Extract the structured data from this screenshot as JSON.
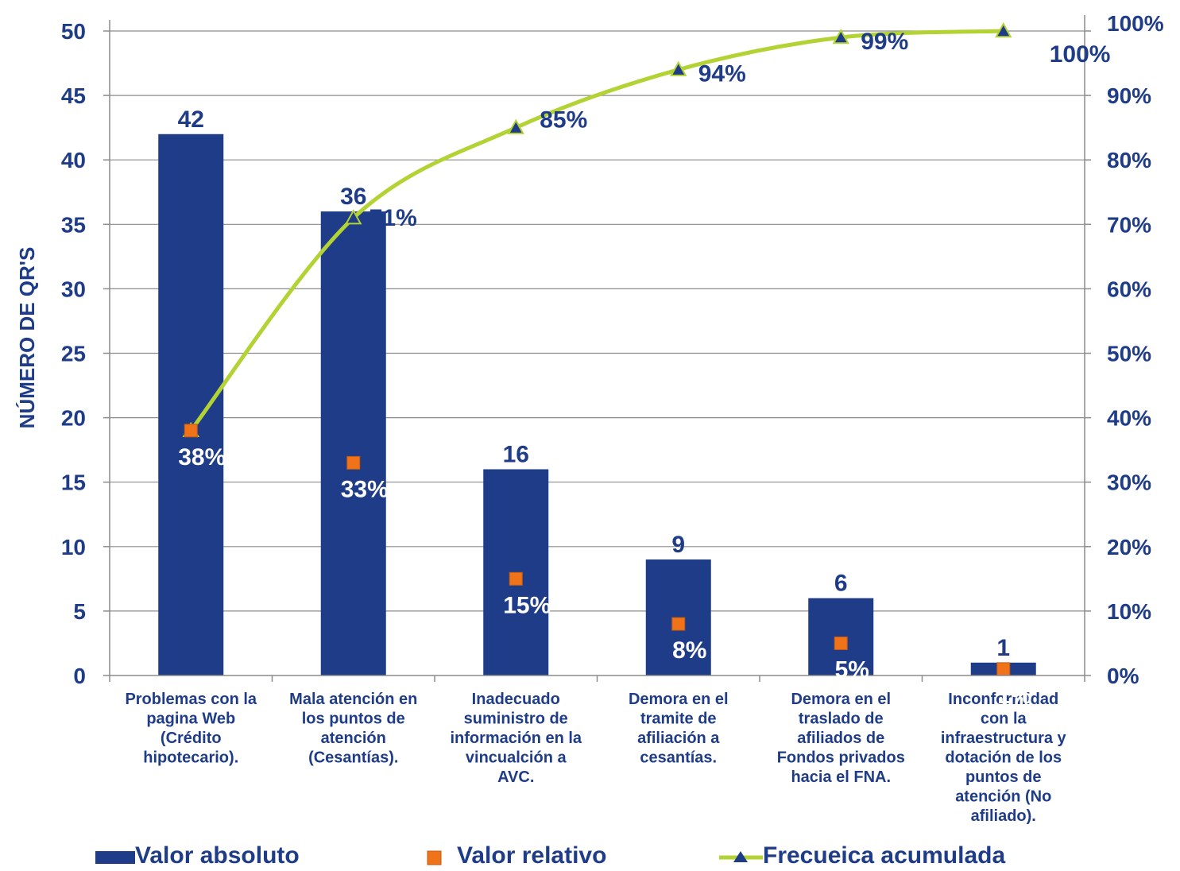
{
  "chart_data": {
    "type": "bar",
    "categories": [
      "Problemas con la pagina Web (Crédito hipotecario).",
      "Mala atención en los puntos de atención (Cesantías).",
      "Inadecuado suministro de información en la vincualción a AVC.",
      "Demora en el tramite de afiliación a cesantías.",
      "Demora en el traslado de afiliados de Fondos privados hacia el FNA.",
      "Inconformidad con la infraestructura y dotación de los puntos de atención (No afiliado)."
    ],
    "category_lines": [
      [
        "Problemas con la",
        "pagina Web",
        "(Crédito",
        "hipotecario)."
      ],
      [
        "Mala atención en",
        "los puntos de",
        "atención",
        "(Cesantías)."
      ],
      [
        "Inadecuado",
        "suministro de",
        "información en la",
        "vincualción a",
        "AVC."
      ],
      [
        "Demora en el",
        "tramite de",
        "afiliación a",
        "cesantías."
      ],
      [
        "Demora en el",
        "traslado de",
        "afiliados de",
        "Fondos privados",
        "hacia el FNA."
      ],
      [
        "Inconformidad",
        "con la",
        "infraestructura y",
        "dotación de los",
        "puntos de",
        "atención (No",
        "afiliado)."
      ]
    ],
    "series": [
      {
        "name": "Valor absoluto",
        "type": "bar",
        "axis": "left",
        "values": [
          42,
          36,
          16,
          9,
          6,
          1
        ],
        "labels": [
          "42",
          "36",
          "16",
          "9",
          "6",
          "1"
        ],
        "color": "#1f3c88"
      },
      {
        "name": "Valor relativo",
        "type": "marker",
        "axis": "right",
        "values": [
          38,
          33,
          15,
          8,
          5,
          1
        ],
        "labels": [
          "38%",
          "33%",
          "15%",
          "8%",
          "5%",
          "1%"
        ],
        "color": "#f0731a"
      },
      {
        "name": "Frecueica acumulada",
        "type": "line",
        "axis": "right",
        "values": [
          38,
          71,
          85,
          94,
          99,
          100
        ],
        "labels": [
          "",
          "71%",
          "85%",
          "94%",
          "99%",
          "100%"
        ],
        "color": "#b3d334",
        "marker_color": "#1f3c88"
      }
    ],
    "y_left": {
      "label": "NÚMERO DE QR'S",
      "ylim": [
        0,
        50
      ],
      "ticks": [
        0,
        5,
        10,
        15,
        20,
        25,
        30,
        35,
        40,
        45,
        50
      ]
    },
    "y_right": {
      "ylim": [
        0,
        100
      ],
      "ticks": [
        "0%",
        "10%",
        "20%",
        "30%",
        "40%",
        "50%",
        "60%",
        "70%",
        "80%",
        "90%",
        "100%"
      ]
    },
    "grid": true,
    "legend_position": "bottom"
  }
}
